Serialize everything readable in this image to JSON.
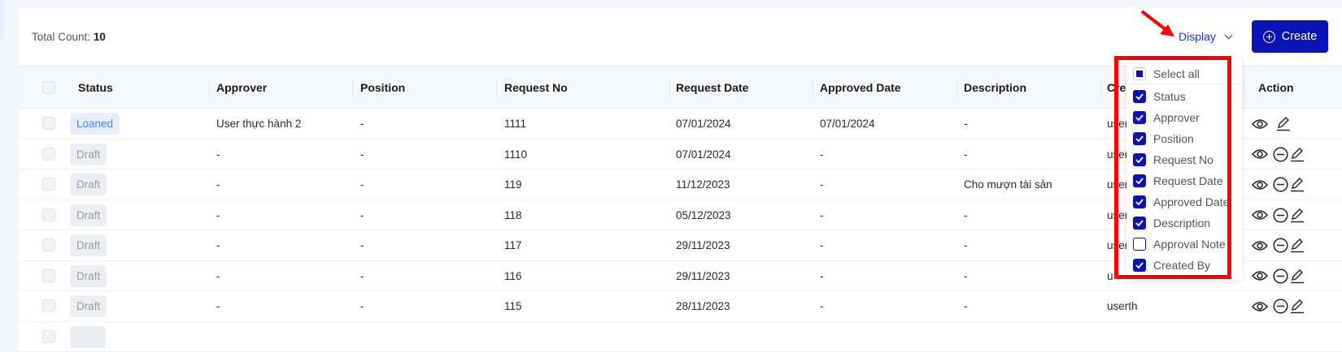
{
  "header": {
    "total_label": "Total Count:",
    "total_value": "10",
    "display_label": "Display",
    "create_label": "Create"
  },
  "columns": [
    "Status",
    "Approver",
    "Position",
    "Request No",
    "Request Date",
    "Approved Date",
    "Description",
    "Created By",
    "Action"
  ],
  "rows": [
    {
      "status": "Loaned",
      "approver": "User thực hành 2",
      "position": "-",
      "request_no": "1111",
      "request_date": "07/01/2024",
      "approved_date": "07/01/2024",
      "description": "-",
      "created_by": "user",
      "actions": [
        "view",
        "edit"
      ]
    },
    {
      "status": "Draft",
      "approver": "-",
      "position": "-",
      "request_no": "1110",
      "request_date": "07/01/2024",
      "approved_date": "-",
      "description": "-",
      "created_by": "user",
      "actions": [
        "view",
        "cancel",
        "edit"
      ]
    },
    {
      "status": "Draft",
      "approver": "-",
      "position": "-",
      "request_no": "119",
      "request_date": "11/12/2023",
      "approved_date": "-",
      "description": "Cho mượn tài sản",
      "created_by": "user",
      "actions": [
        "view",
        "cancel",
        "edit"
      ]
    },
    {
      "status": "Draft",
      "approver": "-",
      "position": "-",
      "request_no": "118",
      "request_date": "05/12/2023",
      "approved_date": "-",
      "description": "-",
      "created_by": "user",
      "actions": [
        "view",
        "cancel",
        "edit"
      ]
    },
    {
      "status": "Draft",
      "approver": "-",
      "position": "-",
      "request_no": "117",
      "request_date": "29/11/2023",
      "approved_date": "-",
      "description": "-",
      "created_by": "user",
      "actions": [
        "view",
        "cancel",
        "edit"
      ]
    },
    {
      "status": "Draft",
      "approver": "-",
      "position": "-",
      "request_no": "116",
      "request_date": "29/11/2023",
      "approved_date": "-",
      "description": "-",
      "created_by": "u",
      "actions": [
        "view",
        "cancel",
        "edit"
      ]
    },
    {
      "status": "Draft",
      "approver": "-",
      "position": "-",
      "request_no": "115",
      "request_date": "28/11/2023",
      "approved_date": "-",
      "description": "-",
      "created_by": "userth",
      "actions": [
        "view",
        "cancel",
        "edit"
      ]
    }
  ],
  "display_menu": {
    "select_all_label": "Select all",
    "select_all_state": "indeterminate",
    "items": [
      {
        "label": "Status",
        "checked": true
      },
      {
        "label": "Approver",
        "checked": true
      },
      {
        "label": "Position",
        "checked": true
      },
      {
        "label": "Request No",
        "checked": true
      },
      {
        "label": "Request Date",
        "checked": true
      },
      {
        "label": "Approved Date",
        "checked": true
      },
      {
        "label": "Description",
        "checked": true
      },
      {
        "label": "Approval Note",
        "checked": false
      },
      {
        "label": "Created By",
        "checked": true
      }
    ]
  },
  "colors": {
    "accent": "#0a14b4",
    "link": "#2030ff",
    "highlight": "#ff0000"
  }
}
